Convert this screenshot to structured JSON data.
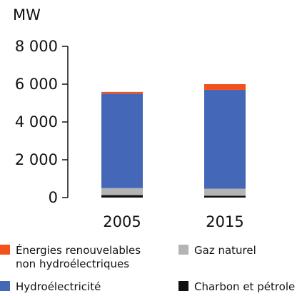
{
  "chart_data": {
    "type": "bar",
    "stacked": true,
    "unit_label": "MW",
    "categories": [
      "2005",
      "2015"
    ],
    "ylim": [
      0,
      8000
    ],
    "yticks": [
      0,
      2000,
      4000,
      6000,
      8000
    ],
    "ytick_labels": [
      "0",
      "2 000",
      "4 000",
      "6 000",
      "8 000"
    ],
    "grid": false,
    "legend_position": "bottom",
    "series": [
      {
        "name": "Charbon et pétrole",
        "color": "#111111",
        "values": [
          130,
          100
        ]
      },
      {
        "name": "Gaz naturel",
        "color": "#b4b4b4",
        "values": [
          370,
          370
        ]
      },
      {
        "name": "Hydroélectricité",
        "color": "#4467b8",
        "values": [
          5000,
          5230
        ]
      },
      {
        "name": "Énergies renouvelables non hydroélectriques",
        "color": "#f4501c",
        "values": [
          90,
          300
        ]
      }
    ],
    "legend": [
      {
        "label_lines": [
          "Énergies renouvelables",
          "non hydroélectriques"
        ],
        "color": "#f4501c"
      },
      {
        "label_lines": [
          "Gaz naturel"
        ],
        "color": "#b4b4b4"
      },
      {
        "label_lines": [
          "Hydroélectricité"
        ],
        "color": "#4467b8"
      },
      {
        "label_lines": [
          "Charbon et pétrole"
        ],
        "color": "#111111"
      }
    ]
  }
}
